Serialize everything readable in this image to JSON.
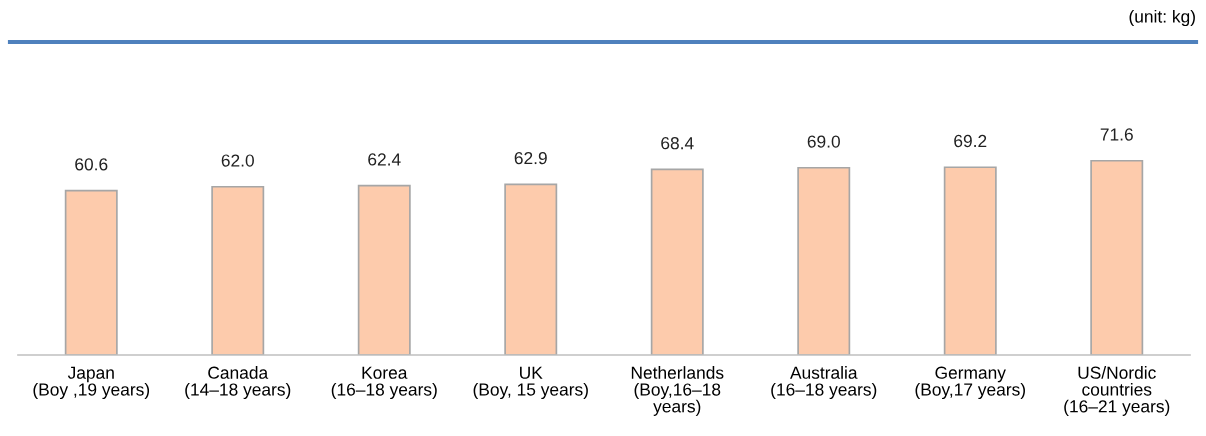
{
  "chart_data": {
    "type": "bar",
    "categories": [
      "Japan\n(Boy ,19 years)",
      "Canada\n(14–18 years)",
      "Korea\n(16–18 years)",
      "UK\n(Boy, 15 years)",
      "Netherlands\n(Boy,16–18\nyears)",
      "Australia\n(16–18 years)",
      "Germany\n(Boy,17 years)",
      "US/Nordic\ncountries\n(16–21 years)"
    ],
    "values": [
      60.6,
      62.0,
      62.4,
      62.9,
      68.4,
      69.0,
      69.2,
      71.6
    ],
    "color": "#fdcbac",
    "value_labels": [
      "60.6",
      "62.0",
      "62.4",
      "62.9",
      "68.4",
      "69.0",
      "69.2",
      "71.6"
    ],
    "annotations": [
      "(unit: kg)"
    ]
  }
}
